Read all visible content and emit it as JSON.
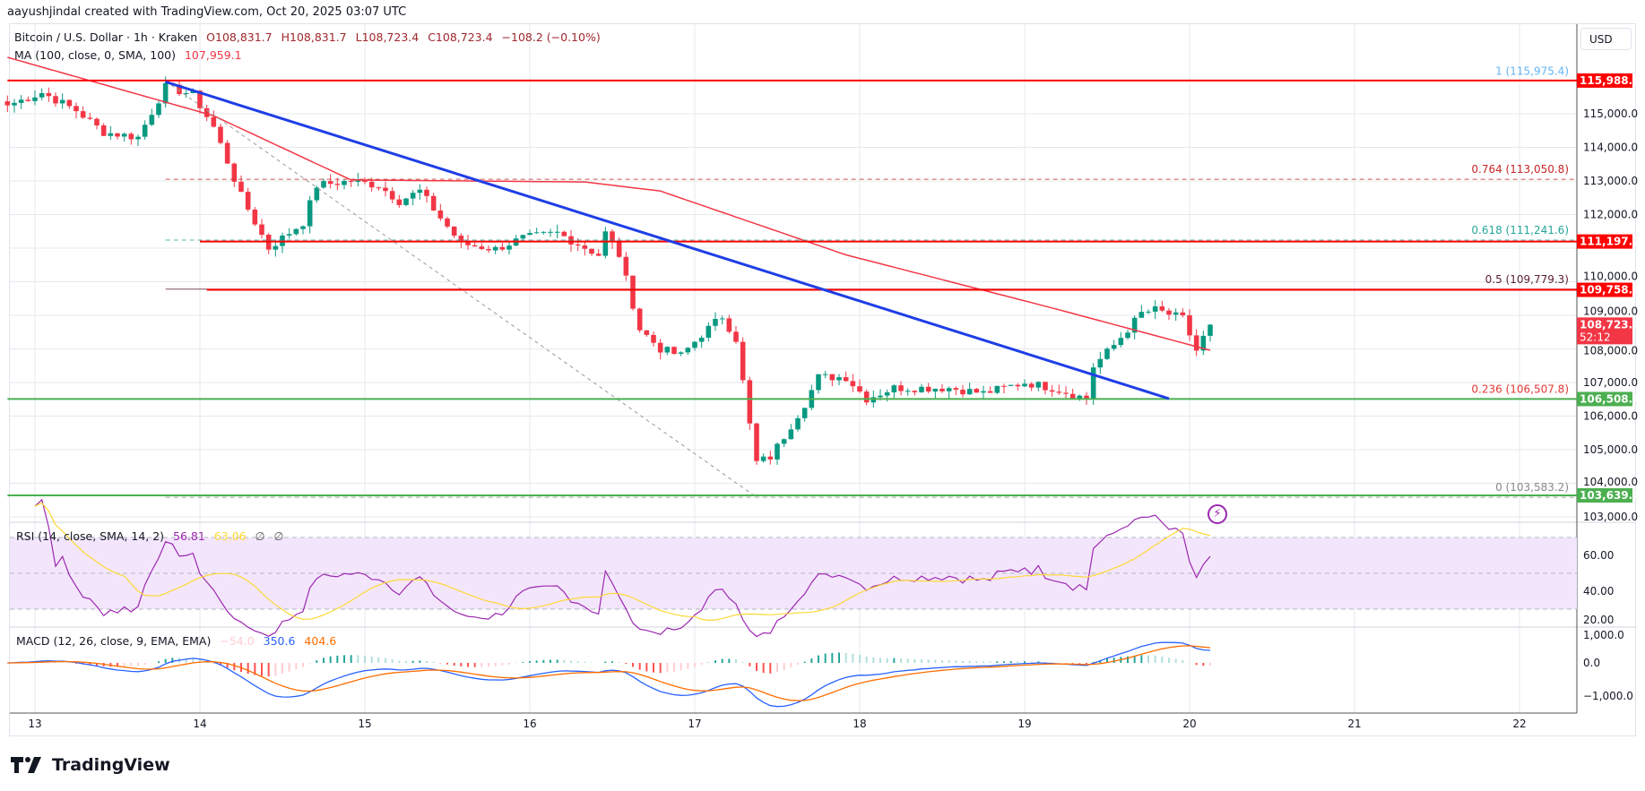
{
  "header": {
    "credit": "aayushjindal created with TradingView.com, Oct 20, 2025 03:07 UTC"
  },
  "legend": {
    "symbol": "Bitcoin / U.S. Dollar · 1h · Kraken",
    "open": "O108,831.7",
    "high": "H108,831.7",
    "low": "L108,723.4",
    "close": "C108,723.4",
    "change": "−108.2 (−0.10%)",
    "ma_label": "MA (100, close, 0, SMA, 100)",
    "ma_value": "107,959.1",
    "rsi_label": "RSI (14, close, SMA, 14, 2)",
    "rsi_value": "56.81",
    "rsi_sma_value": "63.06",
    "rsi_extra1": "∅",
    "rsi_extra2": "∅",
    "macd_label": "MACD (12, 26, close, 9, EMA, EMA)",
    "macd_hist": "−54.0",
    "macd_value": "350.6",
    "macd_signal": "404.6"
  },
  "currency_button": "USD",
  "brand": "TradingView",
  "colors": {
    "up": "#089981",
    "down": "#f23645",
    "ma": "#f23645",
    "trendline": "#1e3ee6",
    "resistance": "#ff0000",
    "support": "#4caf50",
    "rsi": "#9c27b0",
    "rsi_sma": "#fdd835",
    "macd": "#2962ff",
    "signal": "#ff6d00",
    "rsi_band": "#f3e6fc"
  },
  "icons": {
    "replay": "lightning-bolt-icon"
  },
  "chart_data": {
    "type": "candlestick",
    "symbol": "BTCUSD",
    "interval": "1h",
    "exchange": "Kraken",
    "x_ticks": [
      "13",
      "14",
      "15",
      "16",
      "17",
      "18",
      "19",
      "20",
      "21",
      "22"
    ],
    "y_ticks": [
      "115,000.0",
      "114,000.0",
      "113,000.0",
      "112,000.0",
      "110,000.0",
      "109,000.0",
      "108,000.0",
      "107,000.0",
      "106,000.0",
      "105,000.0",
      "104,000.0",
      "103,000.0"
    ],
    "ylim": [
      102500,
      116500
    ],
    "grid": true,
    "last_price": {
      "value": "108,723.4",
      "countdown": "52:12"
    },
    "close_path": [
      [
        "2025-10-12T20:00",
        115250
      ],
      [
        "2025-10-13T01:00",
        115630
      ],
      [
        "2025-10-13T06:00",
        115100
      ],
      [
        "2025-10-13T10:00",
        114450
      ],
      [
        "2025-10-13T15:00",
        114300
      ],
      [
        "2025-10-13T19:00",
        115800
      ],
      [
        "2025-10-13T23:00",
        115570
      ],
      [
        "2025-10-14T02:00",
        114600
      ],
      [
        "2025-10-14T06:00",
        112550
      ],
      [
        "2025-10-14T10:00",
        111000
      ],
      [
        "2025-10-14T15:00",
        111760
      ],
      [
        "2025-10-14T17:00",
        112870
      ],
      [
        "2025-10-14T22:00",
        113000
      ],
      [
        "2025-10-15T02:00",
        112870
      ],
      [
        "2025-10-15T05:00",
        112400
      ],
      [
        "2025-10-15T08:00",
        112700
      ],
      [
        "2025-10-15T11:00",
        111900
      ],
      [
        "2025-10-15T14:00",
        111130
      ],
      [
        "2025-10-15T19:00",
        110970
      ],
      [
        "2025-10-15T23:00",
        111300
      ],
      [
        "2025-10-16T04:00",
        111450
      ],
      [
        "2025-10-16T10:00",
        110800
      ],
      [
        "2025-10-16T11:00",
        111450
      ],
      [
        "2025-10-16T13:00",
        110800
      ],
      [
        "2025-10-16T16:00",
        108590
      ],
      [
        "2025-10-16T19:00",
        108000
      ],
      [
        "2025-10-16T22:00",
        107800
      ],
      [
        "2025-10-17T01:00",
        108430
      ],
      [
        "2025-10-17T04:00",
        108970
      ],
      [
        "2025-10-17T06:00",
        108300
      ],
      [
        "2025-10-17T08:00",
        105730
      ],
      [
        "2025-10-17T09:00",
        104620
      ],
      [
        "2025-10-17T11:00",
        104780
      ],
      [
        "2025-10-17T13:00",
        105400
      ],
      [
        "2025-10-17T16:00",
        106370
      ],
      [
        "2025-10-17T18:00",
        107160
      ],
      [
        "2025-10-17T22:00",
        107160
      ],
      [
        "2025-10-18T01:00",
        106520
      ],
      [
        "2025-10-18T05:00",
        106840
      ],
      [
        "2025-10-18T13:00",
        106840
      ],
      [
        "2025-10-18T18:00",
        106680
      ],
      [
        "2025-10-19T00:00",
        107000
      ],
      [
        "2025-10-19T04:00",
        106840
      ],
      [
        "2025-10-19T09:00",
        106520
      ],
      [
        "2025-10-19T10:00",
        107480
      ],
      [
        "2025-10-19T13:00",
        108110
      ],
      [
        "2025-10-19T17:00",
        109060
      ],
      [
        "2025-10-19T19:00",
        109160
      ],
      [
        "2025-10-19T23:00",
        108900
      ],
      [
        "2025-10-20T01:00",
        107950
      ],
      [
        "2025-10-20T03:00",
        108723.4
      ]
    ],
    "ma_path": [
      [
        "2025-10-12T20:00",
        116680
      ],
      [
        "2025-10-14T02:00",
        114940
      ],
      [
        "2025-10-14T22:00",
        113030
      ],
      [
        "2025-10-16T08:00",
        112970
      ],
      [
        "2025-10-16T19:00",
        112700
      ],
      [
        "2025-10-17T22:00",
        110800
      ],
      [
        "2025-10-19T04:00",
        109220
      ],
      [
        "2025-10-20T03:00",
        107959.1
      ]
    ],
    "horizontal_levels": [
      {
        "price": 115988.6,
        "label": "115,988.6",
        "kind": "resistance",
        "start": "2025-10-12T20:00"
      },
      {
        "price": 111197.2,
        "label": "111,197.2",
        "kind": "resistance",
        "start": "2025-10-14T00:00"
      },
      {
        "price": 109758.9,
        "label": "109,758.9",
        "kind": "resistance",
        "start": "2025-10-14T01:00"
      },
      {
        "price": 106508.4,
        "label": "106,508.4",
        "kind": "support",
        "start": "2025-10-12T20:00"
      },
      {
        "price": 103639.4,
        "label": "103,639.4",
        "kind": "support",
        "start": "2025-10-12T20:00"
      }
    ],
    "fibonacci": {
      "from": [
        "2025-10-13T19:00",
        115975.4
      ],
      "to": [
        "2025-10-17T09:00",
        103583.2
      ],
      "levels": [
        {
          "ratio": "1",
          "price": 115975.4,
          "label": "1 (115,975.4)",
          "color": "#64b5f6",
          "dashed": false
        },
        {
          "ratio": "0.764",
          "price": 113050.8,
          "label": "0.764 (113,050.8)",
          "color": "#c62828",
          "dashed": true
        },
        {
          "ratio": "0.618",
          "price": 111241.6,
          "label": "0.618 (111,241.6)",
          "color": "#26a69a",
          "dashed": true
        },
        {
          "ratio": "0.5",
          "price": 109779.3,
          "label": "0.5 (109,779.3)",
          "color": "#5d2038",
          "dashed": false
        },
        {
          "ratio": "0.236",
          "price": 106507.8,
          "label": "0.236 (106,507.8)",
          "color": "#e53935",
          "dashed": false
        },
        {
          "ratio": "0",
          "price": 103583.2,
          "label": "0 (103,583.2)",
          "color": "#888888",
          "dashed": true
        }
      ]
    },
    "trendline": {
      "from": [
        "2025-10-13T19:00",
        115950
      ],
      "to": [
        "2025-10-19T21:00",
        106520
      ]
    },
    "rsi": {
      "ticks": [
        "60.00",
        "40.00",
        "20.00"
      ],
      "band": [
        30,
        70
      ],
      "mid": 50
    },
    "macd": {
      "ticks": [
        "1,000.0",
        "0.0",
        "−1,000.0"
      ]
    }
  }
}
